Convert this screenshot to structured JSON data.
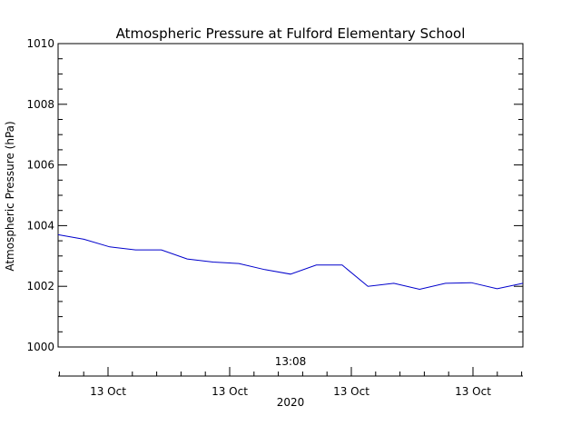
{
  "chart_data": {
    "type": "line",
    "title": "Atmospheric Pressure at Fulford Elementary School",
    "ylabel": "Atmospheric Pressure (hPa)",
    "ylim": [
      1000,
      1010
    ],
    "yticks": [
      1000,
      1002,
      1004,
      1006,
      1008,
      1010
    ],
    "y_tick_labels": [
      "1000",
      "1002",
      "1004",
      "1006",
      "1008",
      "1010"
    ],
    "time_label": "13:08",
    "xlabel": "2020",
    "x_tick_labels": [
      "13 Oct",
      "13 Oct",
      "13 Oct",
      "13 Oct"
    ],
    "grid": false,
    "series": [
      {
        "color": "#0000cc",
        "values": [
          1003.7,
          1003.55,
          1003.3,
          1003.2,
          1003.2,
          1002.9,
          1002.8,
          1002.75,
          1002.55,
          1002.4,
          1002.7,
          1002.7,
          1002.0,
          1002.1,
          1001.9,
          1002.1,
          1002.12,
          1001.92,
          1002.1
        ]
      }
    ]
  }
}
